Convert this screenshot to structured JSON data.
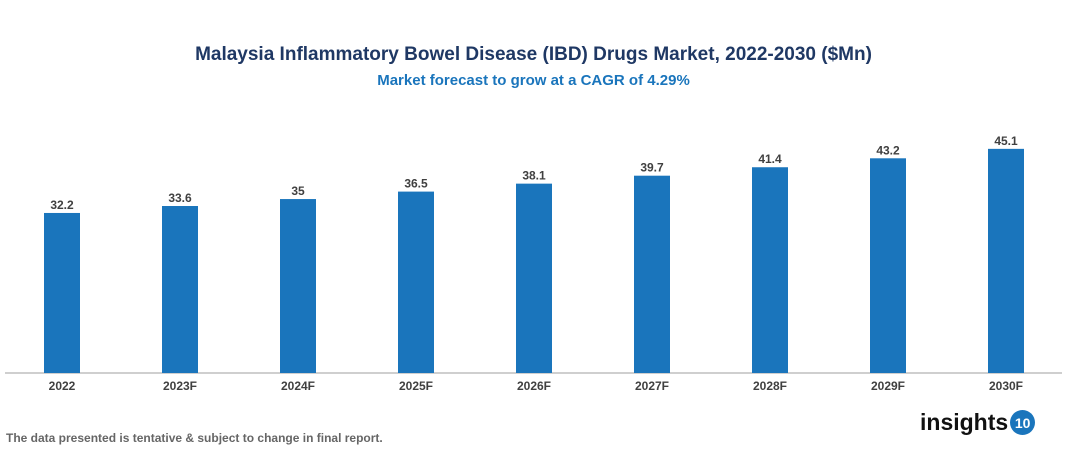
{
  "chart_data": {
    "type": "bar",
    "title": "Malaysia Inflammatory Bowel Disease (IBD) Drugs Market, 2022-2030 ($Mn)",
    "subtitle": "Market forecast to grow at a CAGR of 4.29%",
    "categories": [
      "2022",
      "2023F",
      "2024F",
      "2025F",
      "2026F",
      "2027F",
      "2028F",
      "2029F",
      "2030F"
    ],
    "values": [
      32.2,
      33.6,
      35,
      36.5,
      38.1,
      39.7,
      41.4,
      43.2,
      45.1
    ],
    "value_labels": [
      "32.2",
      "33.6",
      "35",
      "36.5",
      "38.1",
      "39.7",
      "41.4",
      "43.2",
      "45.1"
    ],
    "xlabel": "",
    "ylabel": "",
    "ylim": [
      0,
      50
    ],
    "grid": false,
    "bar_color": "#1a75bc"
  },
  "footer": {
    "note": "The data presented is tentative & subject to change in final report.",
    "logo_text": "insights",
    "logo_badge": "10"
  }
}
